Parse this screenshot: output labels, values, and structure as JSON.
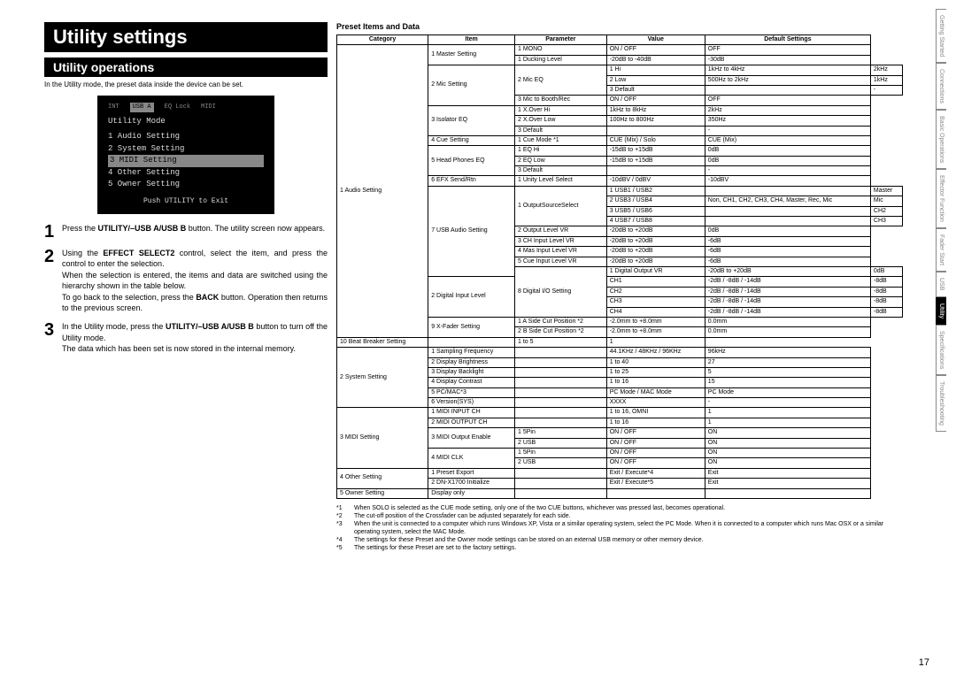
{
  "title": "Utility settings",
  "subtitle": "Utility operations",
  "intro": "In the Utility mode, the preset data inside the device can be set.",
  "lcd": {
    "hdr": [
      "INT",
      "USB A",
      "EQ Lock",
      "MIDI"
    ],
    "title": "Utility Mode",
    "items": [
      "1 Audio Setting",
      "2 System Setting",
      "3 MIDI Setting",
      "4 Other Setting",
      "5 Owner Setting"
    ],
    "selected": 2,
    "footer": "Push UTILITY to Exit"
  },
  "steps": [
    {
      "n": "1",
      "html": "Press the <b>UTILITY/–USB A/USB B</b> button. The utility screen now appears."
    },
    {
      "n": "2",
      "html": "Using the <b>EFFECT SELECT2</b> control, select the item, and press the control to enter the selection.<br>When the selection is entered, the items and data are switched using the hierarchy shown in the table below.<br>To go back to the selection, press the <b>BACK</b> button. Operation then returns to the previous screen."
    },
    {
      "n": "3",
      "html": "In the Utility mode, press the <b>UTILITY/–USB A/USB B</b> button to turn off the Utility mode.<br>The data which has been set is now stored in the internal memory."
    }
  ],
  "table_title": "Preset Items and Data",
  "headers": [
    "Category",
    "Item",
    "Parameter",
    "Value",
    "Default Settings"
  ],
  "footnotes": [
    [
      "*1",
      "When SOLO is selected as the CUE mode setting, only one of the two CUE buttons, whichever was pressed last, becomes operational."
    ],
    [
      "*2",
      "The cut-off position of the Crossfader can be adjusted separately for each side."
    ],
    [
      "*3",
      "When the unit is connected to a computer which runs Windows XP, Vista or a similar operating system, select the PC Mode. When it is connected to a computer which runs Mac OSX or a similar operating system, select the MAC Mode."
    ],
    [
      "*4",
      "The settings for these Preset and the Owner mode settings can be stored on an external USB memory or other memory device."
    ],
    [
      "*5",
      "The settings for these Preset are set to the factory settings."
    ]
  ],
  "tabs": [
    "Getting Started",
    "Connections",
    "Basic Operations",
    "Effector Function",
    "Fader Start",
    "USB",
    "Utility",
    "Specifications",
    "Troubleshooting"
  ],
  "active_tab": 6,
  "page_number": "17",
  "colors": {
    "black": "#000000",
    "white": "#ffffff",
    "grey": "#888888"
  }
}
